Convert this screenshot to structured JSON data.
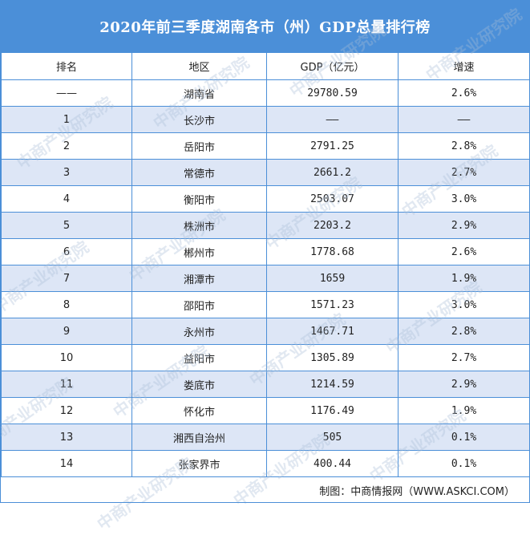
{
  "title": "2020年前三季度湖南各市（州）GDP总量排行榜",
  "headers": [
    "排名",
    "地区",
    "GDP（亿元）",
    "增速"
  ],
  "rows": [
    [
      "——",
      "湖南省",
      "29780.59",
      "2.6%"
    ],
    [
      "1",
      "长沙市",
      "——",
      "——"
    ],
    [
      "2",
      "岳阳市",
      "2791.25",
      "2.8%"
    ],
    [
      "3",
      "常德市",
      "2661.2",
      "2.7%"
    ],
    [
      "4",
      "衡阳市",
      "2503.07",
      "3.0%"
    ],
    [
      "5",
      "株洲市",
      "2203.2",
      "2.9%"
    ],
    [
      "6",
      "郴州市",
      "1778.68",
      "2.6%"
    ],
    [
      "7",
      "湘潭市",
      "1659",
      "1.9%"
    ],
    [
      "8",
      "邵阳市",
      "1571.23",
      "3.0%"
    ],
    [
      "9",
      "永州市",
      "1467.71",
      "2.8%"
    ],
    [
      "10",
      "益阳市",
      "1305.89",
      "2.7%"
    ],
    [
      "11",
      "娄底市",
      "1214.59",
      "2.9%"
    ],
    [
      "12",
      "怀化市",
      "1176.49",
      "1.9%"
    ],
    [
      "13",
      "湘西自治州",
      "505",
      "0.1%"
    ],
    [
      "14",
      "张家界市",
      "400.44",
      "0.1%"
    ]
  ],
  "footer": "制图：中商情报网（WWW.ASKCI.COM）",
  "watermark": "中商产业研究院",
  "colors": {
    "header_bg": "#4b8fd8",
    "alt_row": "#dde6f6",
    "border": "#4b8fd8"
  }
}
